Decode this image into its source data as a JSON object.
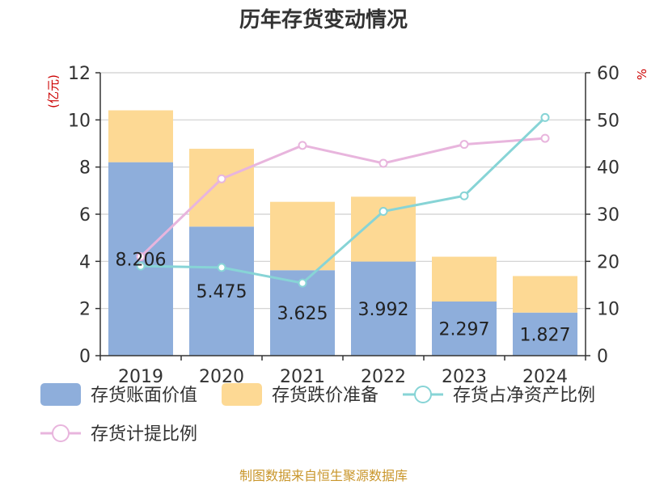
{
  "chart_data": {
    "type": "bar",
    "title": "历年存货变动情况",
    "left_unit": "(亿元)",
    "right_unit": "%",
    "categories": [
      "2019",
      "2020",
      "2021",
      "2022",
      "2023",
      "2024"
    ],
    "left_ylim": [
      0,
      12
    ],
    "left_ticks": [
      0,
      2,
      4,
      6,
      8,
      10,
      12
    ],
    "right_ylim": [
      0,
      60
    ],
    "right_ticks": [
      0,
      10,
      20,
      30,
      40,
      50,
      60
    ],
    "grid": true,
    "legend_position": "bottom",
    "series": [
      {
        "name": "存货账面价值",
        "kind": "bar",
        "axis": "left",
        "color": "#8eaedb",
        "values": [
          8.206,
          5.475,
          3.625,
          3.992,
          2.297,
          1.827
        ],
        "labels": [
          "8.206",
          "5.475",
          "3.625",
          "3.992",
          "2.297",
          "1.827"
        ]
      },
      {
        "name": "存货跌价准备",
        "kind": "bar",
        "axis": "left",
        "color": "#fdd994",
        "values": [
          2.2,
          3.3,
          2.9,
          2.75,
          1.9,
          1.55
        ]
      },
      {
        "name": "存货占净资产比例",
        "kind": "line",
        "axis": "right",
        "color": "#87d4d6",
        "values": [
          19.0,
          18.7,
          15.4,
          30.6,
          33.9,
          50.5
        ]
      },
      {
        "name": "存货计提比例",
        "kind": "line",
        "axis": "right",
        "color": "#e8b5dd",
        "values": [
          21.0,
          37.5,
          44.6,
          40.8,
          44.8,
          46.1
        ]
      }
    ]
  },
  "source": "制图数据来自恒生聚源数据库"
}
